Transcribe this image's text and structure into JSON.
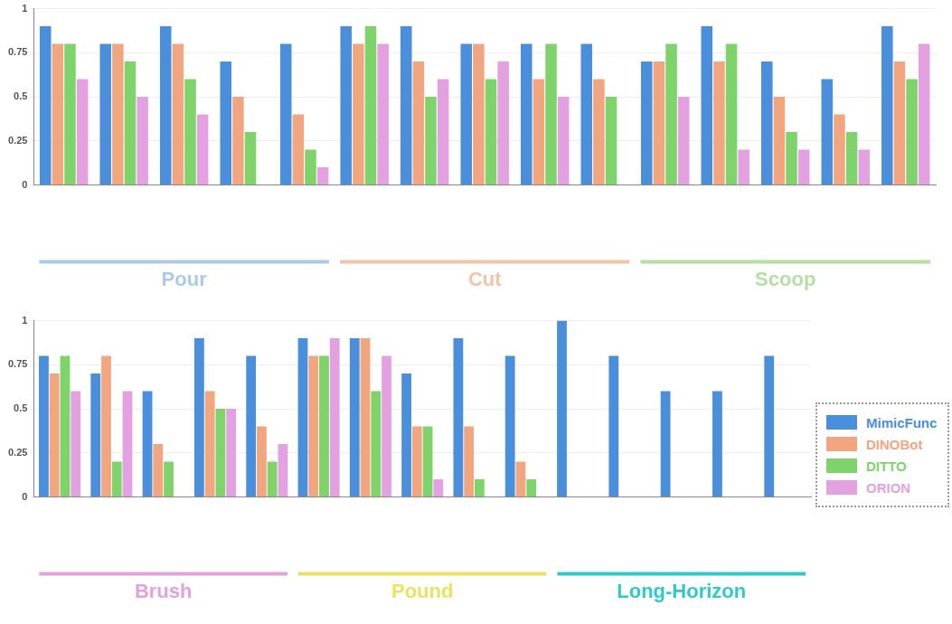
{
  "chart_data": [
    {
      "type": "bar",
      "categories": [
        null,
        null,
        null,
        null,
        null,
        null,
        null,
        null,
        null,
        null,
        null,
        null,
        null,
        null,
        null
      ],
      "groups": [
        {
          "name": "Pour",
          "color": "#a9cbe8",
          "count": 5
        },
        {
          "name": "Cut",
          "color": "#f3c4a6",
          "count": 5
        },
        {
          "name": "Scoop",
          "color": "#b5e0a3",
          "count": 5
        }
      ],
      "series": [
        {
          "name": "MimicFunc",
          "color": "#4a8fdc",
          "values": [
            0.9,
            0.8,
            0.9,
            0.7,
            0.8,
            0.9,
            0.9,
            0.8,
            0.8,
            0.8,
            0.7,
            0.9,
            0.7,
            0.6,
            0.9
          ]
        },
        {
          "name": "DINOBot",
          "color": "#f2a67f",
          "values": [
            0.8,
            0.8,
            0.8,
            0.5,
            0.4,
            0.8,
            0.7,
            0.8,
            0.6,
            0.6,
            0.7,
            0.7,
            0.5,
            0.4,
            0.7
          ]
        },
        {
          "name": "DITTO",
          "color": "#7fd36b",
          "values": [
            0.8,
            0.7,
            0.6,
            0.3,
            0.2,
            0.9,
            0.5,
            0.6,
            0.8,
            0.5,
            0.8,
            0.8,
            0.3,
            0.3,
            0.6
          ]
        },
        {
          "name": "ORION",
          "color": "#e4a1e2",
          "values": [
            0.6,
            0.5,
            0.4,
            0,
            0.1,
            0.8,
            0.6,
            0.7,
            0.5,
            0,
            0.5,
            0.2,
            0.2,
            0.2,
            0.8
          ]
        }
      ],
      "ylim": [
        0,
        1
      ],
      "yticks": [
        0,
        0.25,
        0.5,
        0.75,
        1
      ],
      "grid": true
    },
    {
      "type": "bar",
      "categories": [
        null,
        null,
        null,
        null,
        null,
        null,
        null,
        null,
        null,
        null,
        null,
        null,
        null,
        null,
        null
      ],
      "groups": [
        {
          "name": "Brush",
          "color": "#e2a2e0",
          "count": 5
        },
        {
          "name": "Pound",
          "color": "#ece25e",
          "count": 5
        },
        {
          "name": "Long-Horizon",
          "color": "#2ec9cc",
          "count": 5
        }
      ],
      "series": [
        {
          "name": "MimicFunc",
          "color": "#4a8fdc",
          "values": [
            0.8,
            0.7,
            0.6,
            0.9,
            0.8,
            0.9,
            0.9,
            0.7,
            0.9,
            0.8,
            1,
            0.8,
            0.6,
            0.6,
            0.8
          ]
        },
        {
          "name": "DINOBot",
          "color": "#f2a67f",
          "values": [
            0.7,
            0.8,
            0.3,
            0.6,
            0.4,
            0.8,
            0.9,
            0.4,
            0.4,
            0.2,
            null,
            null,
            null,
            null,
            null
          ]
        },
        {
          "name": "DITTO",
          "color": "#7fd36b",
          "values": [
            0.8,
            0.2,
            0.2,
            0.5,
            0.2,
            0.8,
            0.6,
            0.4,
            0.1,
            0.1,
            null,
            null,
            null,
            null,
            null
          ]
        },
        {
          "name": "ORION",
          "color": "#e4a1e2",
          "values": [
            0.6,
            0.6,
            0,
            0.5,
            0.3,
            0.9,
            0.8,
            0.1,
            0,
            0,
            null,
            null,
            null,
            null,
            null
          ]
        }
      ],
      "ylim": [
        0,
        1
      ],
      "yticks": [
        0,
        0.25,
        0.5,
        0.75,
        1
      ],
      "grid": true,
      "legend": "right"
    }
  ]
}
